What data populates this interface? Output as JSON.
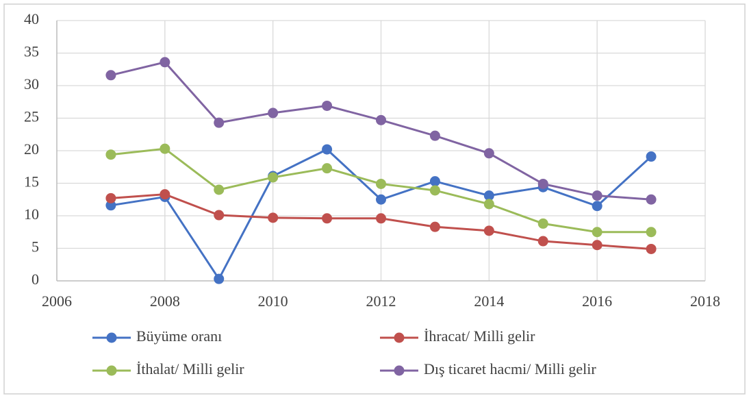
{
  "chart_data": {
    "type": "line",
    "x": [
      2007,
      2008,
      2009,
      2010,
      2011,
      2012,
      2013,
      2014,
      2015,
      2016,
      2017
    ],
    "series": [
      {
        "name": "Büyüme oranı",
        "color": "#4472c4",
        "values": [
          11.6,
          12.9,
          0.3,
          16.1,
          20.2,
          12.5,
          15.3,
          13.1,
          14.4,
          11.5,
          19.1
        ]
      },
      {
        "name": "İhracat/ Milli gelir",
        "color": "#c0504d",
        "values": [
          12.7,
          13.3,
          10.1,
          9.7,
          9.6,
          9.6,
          8.3,
          7.7,
          6.1,
          5.5,
          4.9
        ]
      },
      {
        "name": "İthalat/ Milli gelir",
        "color": "#9bbb59",
        "values": [
          19.4,
          20.3,
          14.0,
          15.9,
          17.3,
          14.9,
          13.9,
          11.8,
          8.8,
          7.5,
          7.5
        ]
      },
      {
        "name": "Dış ticaret hacmi/ Milli gelir",
        "color": "#8064a2",
        "values": [
          31.6,
          33.6,
          24.3,
          25.8,
          26.9,
          24.7,
          22.3,
          19.6,
          14.9,
          13.1,
          12.5
        ]
      }
    ],
    "xlim": [
      2006,
      2018
    ],
    "xticks": [
      2006,
      2008,
      2010,
      2012,
      2014,
      2016,
      2018
    ],
    "ylim": [
      0,
      40
    ],
    "yticks": [
      0,
      5,
      10,
      15,
      20,
      25,
      30,
      35,
      40
    ],
    "grid": true,
    "legend": "bottom"
  }
}
